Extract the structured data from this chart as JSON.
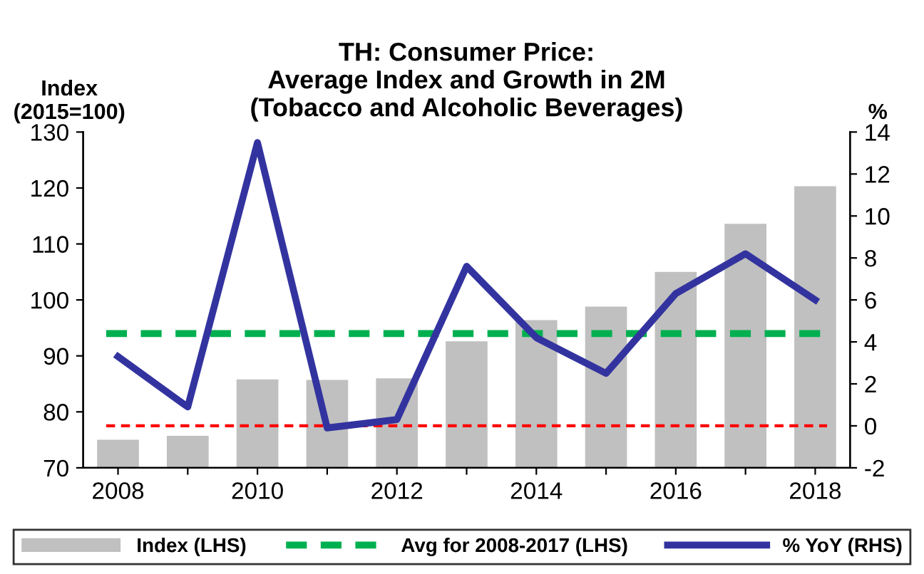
{
  "chart_data": {
    "type": "bar",
    "title": "TH: Consumer Price:\nAverage Index and Growth in 2M\n(Tobacco and Alcoholic Beverages)",
    "ylabel": "Index\n(2015=100)",
    "y2label": "%",
    "categories": [
      "2008",
      null,
      "2010",
      null,
      "2012",
      null,
      "2014",
      null,
      "2016",
      null,
      "2018"
    ],
    "series": [
      {
        "name": "Index (LHS)",
        "color": "#c0c0c0",
        "values": [
          75.0,
          75.7,
          85.8,
          85.7,
          86.0,
          92.6,
          96.4,
          98.8,
          105.0,
          113.6,
          120.3
        ]
      },
      {
        "name": "% YoY (RHS)",
        "type": "line",
        "axis": "y2",
        "color": "#3333a0",
        "values": [
          3.3,
          0.9,
          13.5,
          -0.1,
          0.3,
          7.6,
          4.2,
          2.5,
          6.3,
          8.2,
          6.0
        ]
      }
    ],
    "ref_lines": [
      {
        "axis": "y",
        "value": 94,
        "label": "Avg for 2008-2017 (LHS)",
        "color": "#00b050",
        "line_style": "dashed"
      },
      {
        "axis": "y2",
        "value": 0,
        "label": null,
        "color": "#ff0000",
        "line_style": "dashed"
      }
    ],
    "ylim": [
      70,
      130
    ],
    "yticks": [
      70,
      80,
      90,
      100,
      110,
      120,
      130
    ],
    "y2lim": [
      -2,
      14
    ],
    "y2ticks": [
      -2,
      0,
      2,
      4,
      6,
      8,
      10,
      12,
      14
    ],
    "legend": "bottom",
    "grid": false
  }
}
